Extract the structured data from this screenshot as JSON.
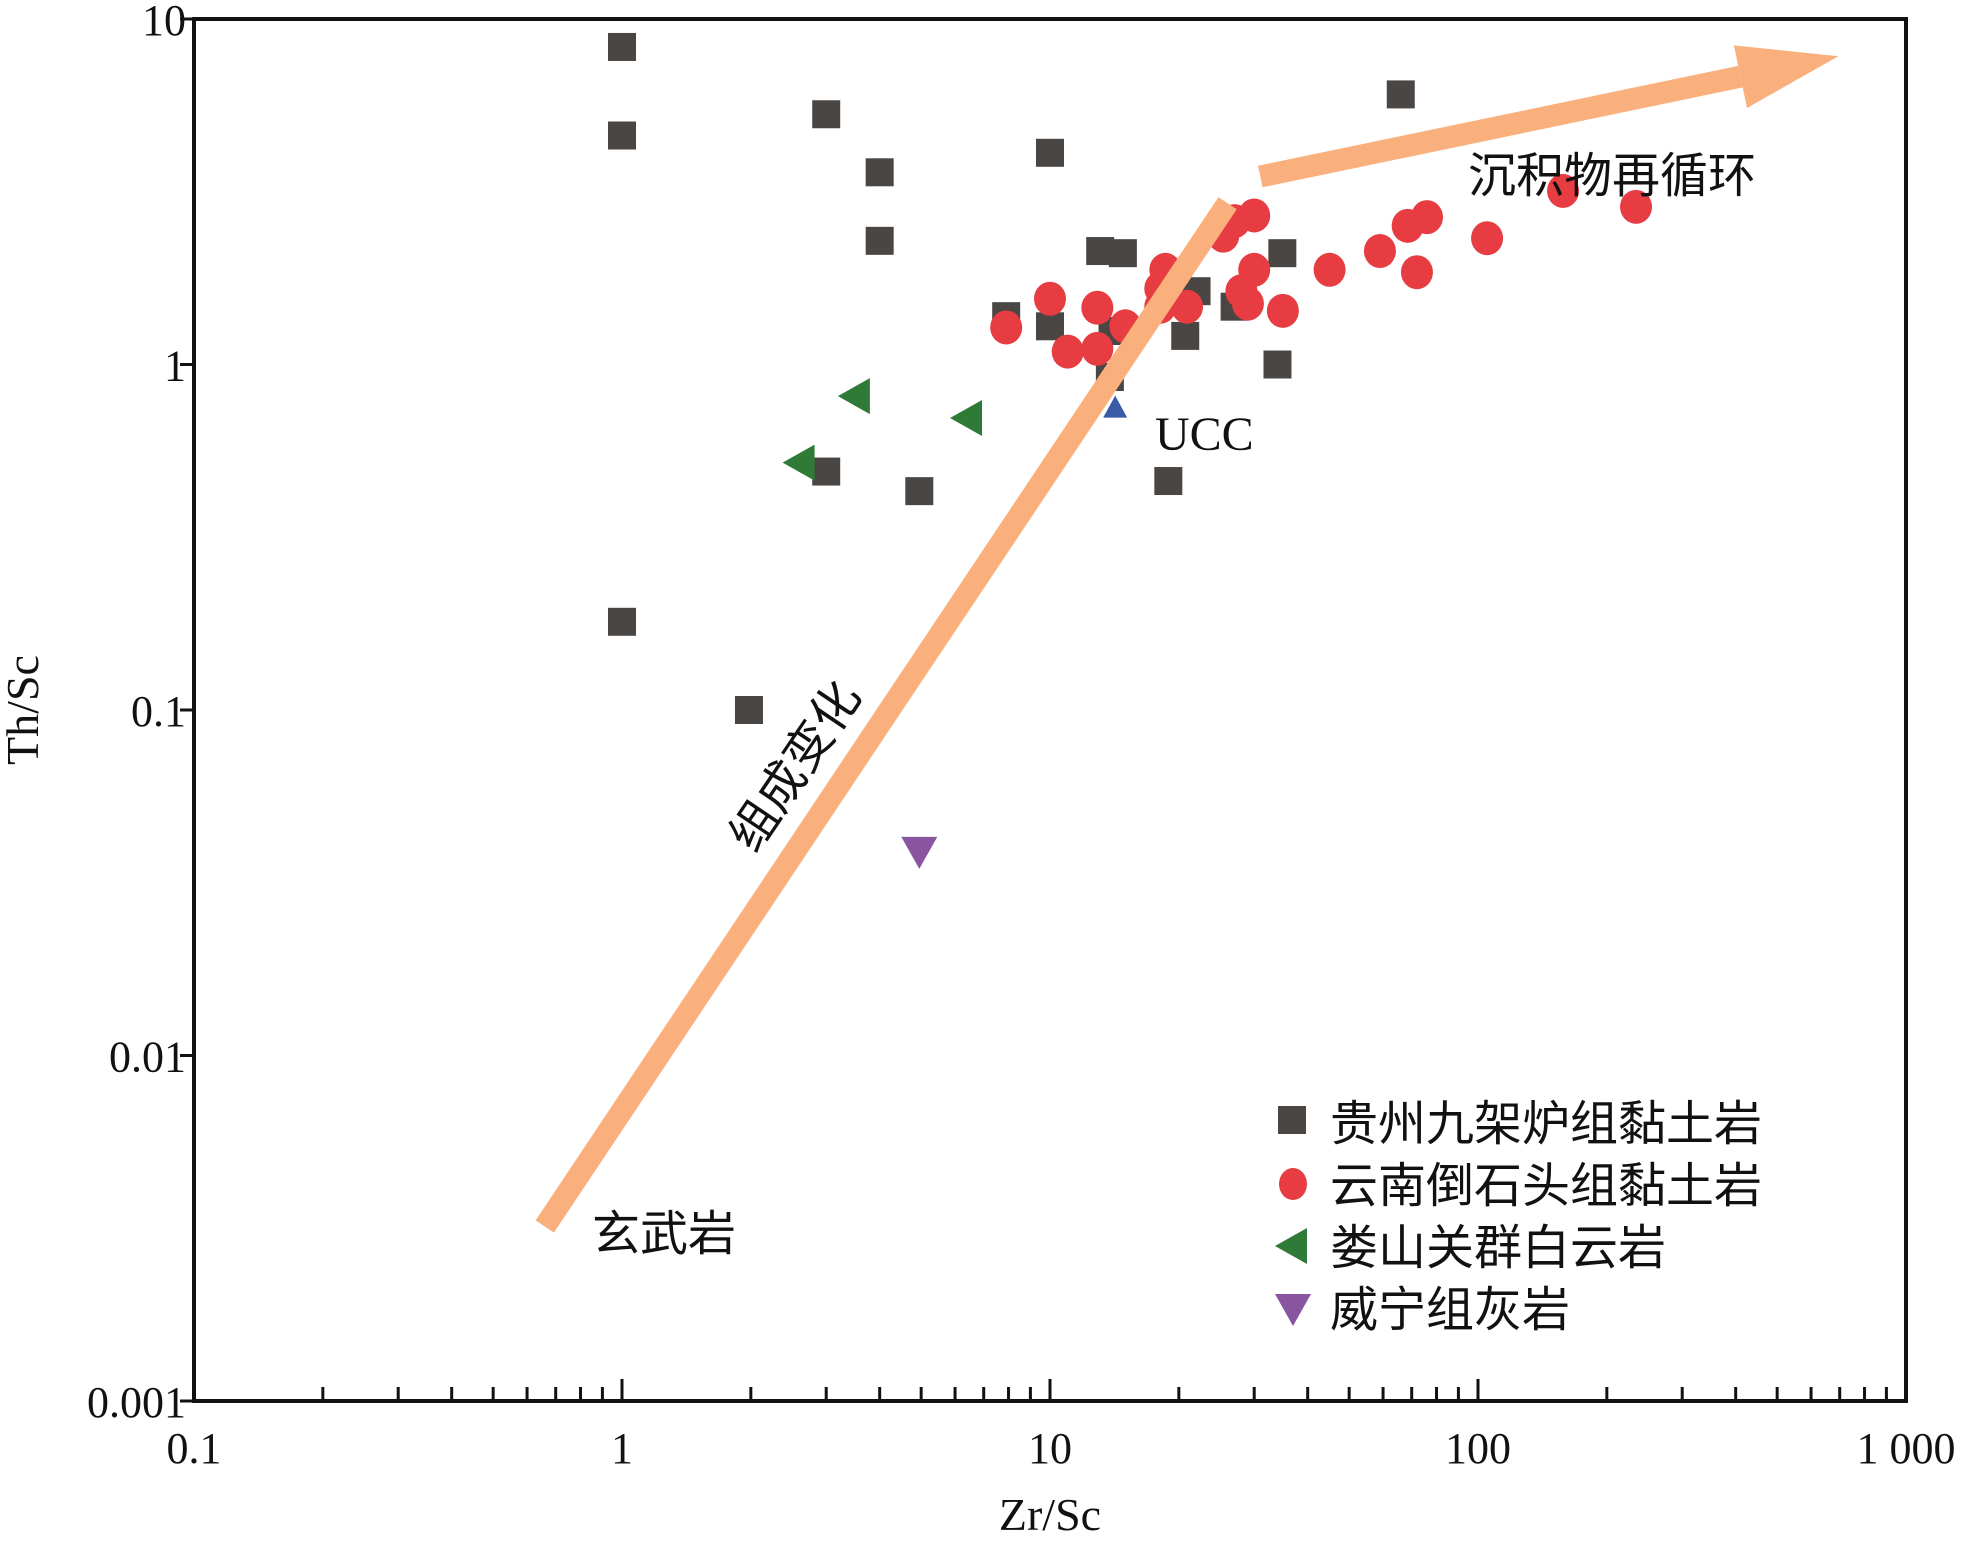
{
  "chart_data": {
    "type": "scatter",
    "xlabel": "Zr/Sc",
    "ylabel": "Th/Sc",
    "xscale": "log",
    "yscale": "log",
    "xlim": [
      0.1,
      1000
    ],
    "ylim": [
      0.001,
      10
    ],
    "x_ticks": [
      0.1,
      1,
      10,
      100,
      1000
    ],
    "x_tick_labels": [
      "0.1",
      "1",
      "10",
      "100",
      "1 000"
    ],
    "y_ticks": [
      0.001,
      0.01,
      0.1,
      1,
      10
    ],
    "y_tick_labels": [
      "0.001",
      "0.01",
      "0.1",
      "1",
      "10"
    ],
    "grid": false,
    "legend_position": "bottom-right",
    "series": [
      {
        "name": "贵州九架炉组黏土岩",
        "marker": "square",
        "color": "#4a4644",
        "points": [
          [
            1,
            8.3
          ],
          [
            1,
            4.6
          ],
          [
            3.0,
            5.3
          ],
          [
            4.0,
            3.6
          ],
          [
            4.0,
            2.28
          ],
          [
            10,
            4.1
          ],
          [
            66,
            6.05
          ],
          [
            13.1,
            2.13
          ],
          [
            14.8,
            2.1
          ],
          [
            34.9,
            2.1
          ],
          [
            7.9,
            1.38
          ],
          [
            10,
            1.29
          ],
          [
            22,
            1.63
          ],
          [
            27,
            1.47
          ],
          [
            20.7,
            1.21
          ],
          [
            14,
            1.25
          ],
          [
            13.8,
            0.92
          ],
          [
            34,
            1.0
          ],
          [
            3.0,
            0.49
          ],
          [
            4.95,
            0.43
          ],
          [
            18.9,
            0.46
          ],
          [
            1,
            0.18
          ],
          [
            1.98,
            0.1
          ]
        ]
      },
      {
        "name": "云南倒石头组黏土岩",
        "marker": "circle",
        "color": "#e63c42",
        "points": [
          [
            7.9,
            1.28
          ],
          [
            10,
            1.55
          ],
          [
            11,
            1.09
          ],
          [
            12.9,
            1.46
          ],
          [
            12.9,
            1.11
          ],
          [
            15,
            1.29
          ],
          [
            18.1,
            1.66
          ],
          [
            18.6,
            1.88
          ],
          [
            18.1,
            1.47
          ],
          [
            20.9,
            1.47
          ],
          [
            25.4,
            2.36
          ],
          [
            27,
            2.6
          ],
          [
            30,
            2.7
          ],
          [
            30,
            1.88
          ],
          [
            28,
            1.63
          ],
          [
            29,
            1.5
          ],
          [
            35,
            1.43
          ],
          [
            45,
            1.88
          ],
          [
            59,
            2.13
          ],
          [
            68.5,
            2.52
          ],
          [
            76,
            2.67
          ],
          [
            72,
            1.85
          ],
          [
            105,
            2.32
          ],
          [
            158,
            3.18
          ],
          [
            234,
            2.86
          ]
        ]
      },
      {
        "name": "娄山关群白云岩",
        "marker": "triangle-left",
        "color": "#2e7a36",
        "points": [
          [
            3.5,
            0.81
          ],
          [
            6.4,
            0.7
          ],
          [
            2.6,
            0.52
          ]
        ]
      },
      {
        "name": "威宁组灰岩",
        "marker": "triangle-down",
        "color": "#8a55a0",
        "points": [
          [
            4.95,
            0.0386
          ]
        ]
      },
      {
        "name": "UCC",
        "marker": "triangle-up",
        "color": "#3a5aa8",
        "in_legend": false,
        "points": [
          [
            14.2,
            0.75
          ]
        ]
      }
    ],
    "annotations": [
      {
        "text": "UCC",
        "at": [
          15.5,
          0.52
        ]
      },
      {
        "text": "沉积物再循环",
        "at": [
          80,
          3.1
        ]
      },
      {
        "text": "组成变化",
        "at": [
          2.6,
          0.055
        ]
      },
      {
        "text": "玄武岩",
        "at": [
          0.75,
          0.0022
        ]
      }
    ],
    "arrows": [
      {
        "from": [
          0.66,
          0.0032
        ],
        "to": [
          26,
          2.93
        ],
        "color": "#f9b07c",
        "head": false
      },
      {
        "from": [
          31,
          3.5
        ],
        "to": [
          695,
          7.8
        ],
        "color": "#f9b07c",
        "head": true
      }
    ]
  }
}
